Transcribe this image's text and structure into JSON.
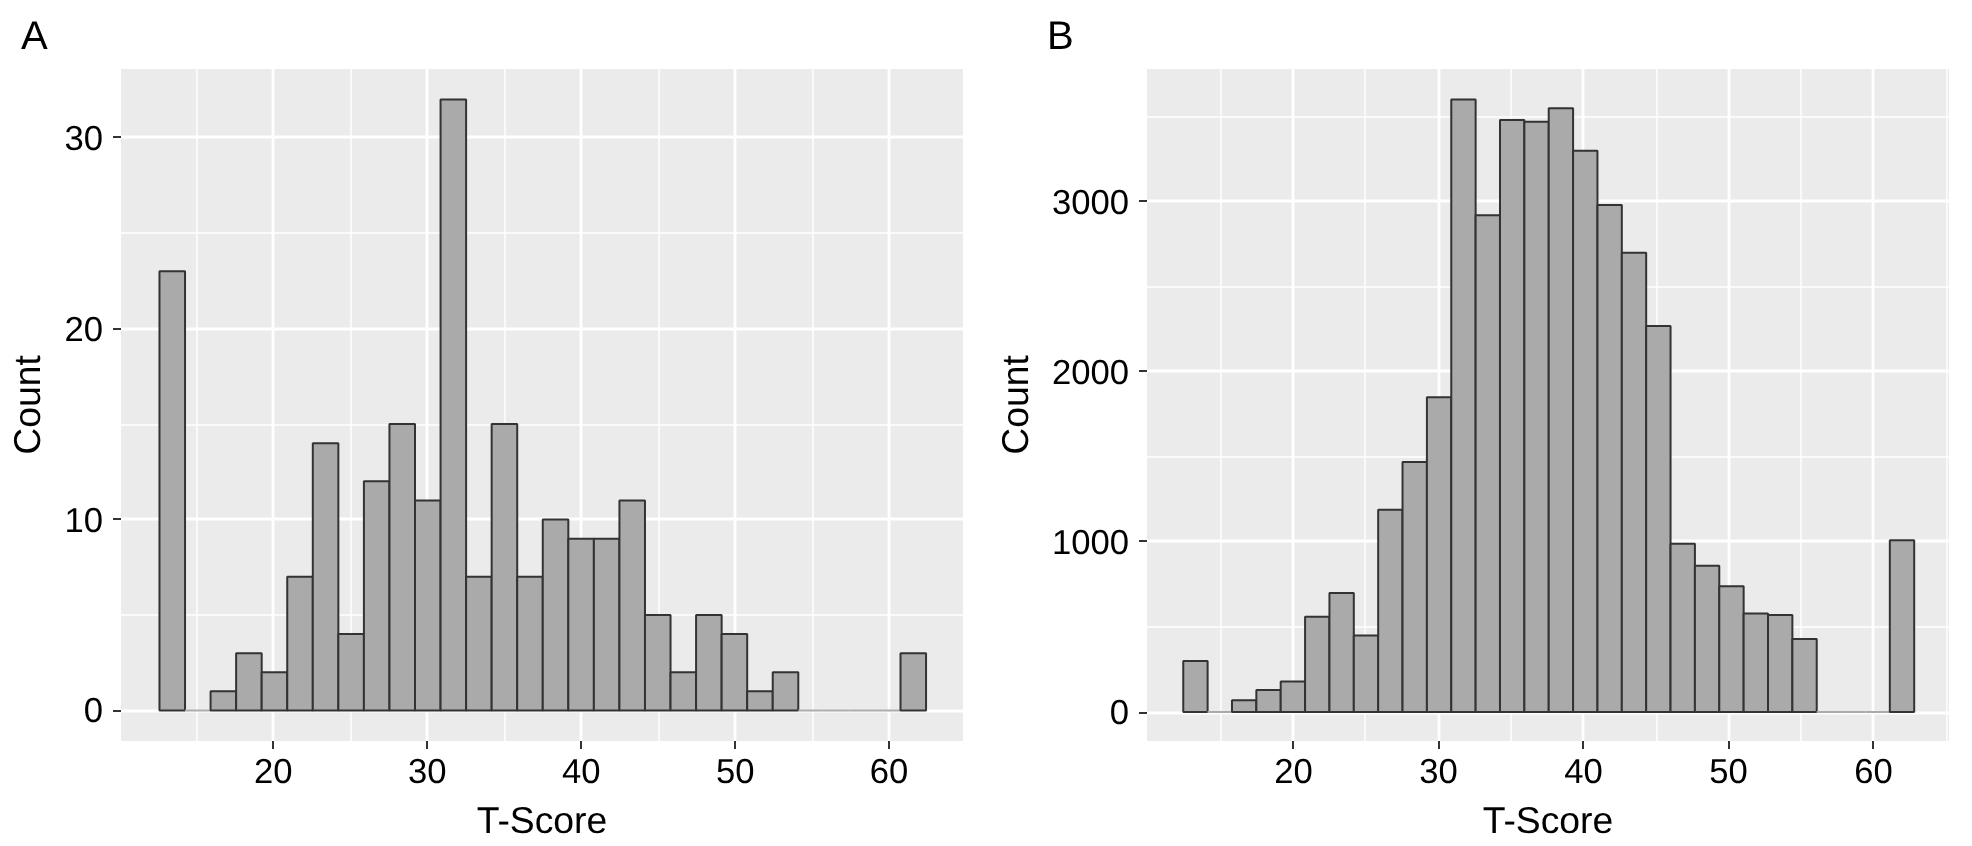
{
  "chart_data": [
    {
      "type": "histogram",
      "title": "A",
      "xlabel": "T-Score",
      "ylabel": "Count",
      "color": "#aaaaaa",
      "grid": true,
      "bins": [
        12.6,
        14.26,
        15.92,
        17.58,
        19.24,
        20.9,
        22.56,
        24.22,
        25.88,
        27.54,
        29.2,
        30.86,
        32.52,
        34.18,
        35.84,
        37.5,
        39.16,
        40.82,
        42.48,
        44.14,
        45.8,
        47.46,
        49.12,
        50.78,
        52.44,
        54.1,
        55.76,
        57.42,
        59.08,
        60.74,
        62.4
      ],
      "values": [
        23,
        0,
        1,
        3,
        2,
        7,
        14,
        4,
        12,
        15,
        11,
        32,
        7,
        15,
        7,
        10,
        9,
        9,
        11,
        5,
        2,
        5,
        4,
        1,
        2,
        0,
        0,
        0,
        0,
        3
      ],
      "xlim": [
        10.1,
        64.8
      ],
      "ylim": [
        -1.6,
        33.6
      ],
      "xticks": [
        20,
        30,
        40,
        50,
        60
      ],
      "yticks": [
        0,
        10,
        20,
        30
      ]
    },
    {
      "type": "histogram",
      "title": "B",
      "xlabel": "T-Score",
      "ylabel": "Count",
      "color": "#aaaaaa",
      "grid": true,
      "bins": [
        12.4,
        14.08,
        15.76,
        17.44,
        19.12,
        20.8,
        22.48,
        24.16,
        25.84,
        27.52,
        29.2,
        30.88,
        32.56,
        34.24,
        35.92,
        37.6,
        39.28,
        40.96,
        42.64,
        44.32,
        46.0,
        47.68,
        49.36,
        51.04,
        52.72,
        54.4,
        56.08,
        57.76,
        59.44,
        61.12,
        62.8
      ],
      "values": [
        300,
        0,
        70,
        130,
        180,
        560,
        700,
        450,
        1190,
        1470,
        1850,
        3600,
        2920,
        3480,
        3470,
        3550,
        3300,
        2980,
        2700,
        2270,
        990,
        860,
        740,
        580,
        570,
        430,
        0,
        0,
        0,
        1010
      ],
      "xlim": [
        9.9,
        65.2
      ],
      "ylim": [
        -170,
        3780
      ],
      "xticks": [
        20,
        30,
        40,
        50,
        60
      ],
      "yticks": [
        0,
        1000,
        2000,
        3000
      ]
    }
  ]
}
